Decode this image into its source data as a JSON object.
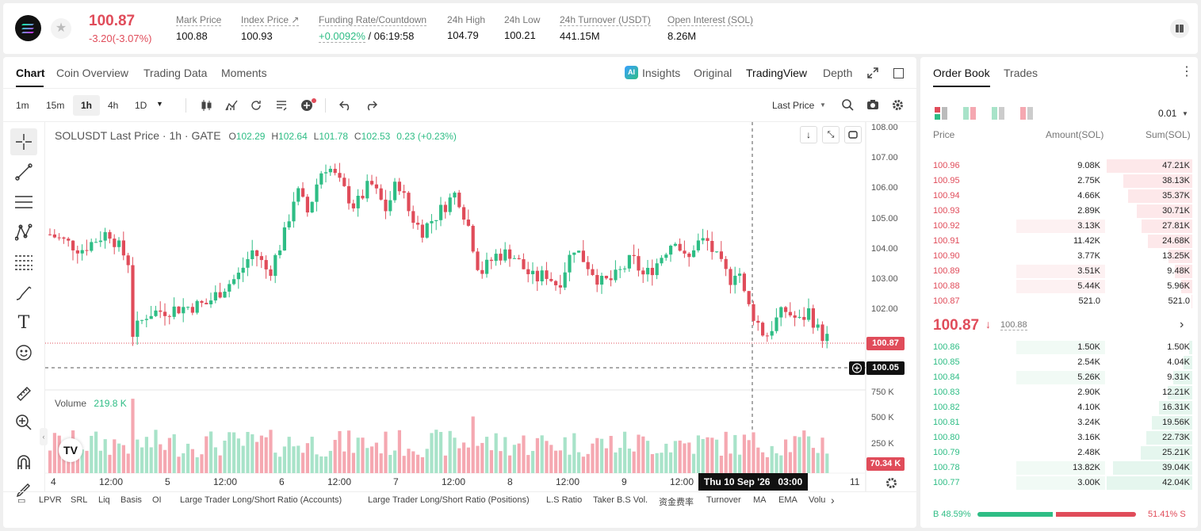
{
  "header": {
    "price": "100.87",
    "change": "-3.20(-3.07%)",
    "stats": [
      {
        "label": "Mark Price",
        "value": "100.88"
      },
      {
        "label": "Index Price ↗",
        "value": "100.93"
      },
      {
        "label": "Funding Rate/Countdown",
        "value": "+0.0092%",
        "value2": "/ 06:19:58"
      },
      {
        "label": "24h High",
        "value": "104.79"
      },
      {
        "label": "24h Low",
        "value": "100.21"
      },
      {
        "label": "24h Turnover (USDT)",
        "value": "441.15M"
      },
      {
        "label": "Open Interest (SOL)",
        "value": "8.26M"
      }
    ]
  },
  "chart_tabs": [
    "Chart",
    "Coin Overview",
    "Trading Data",
    "Moments"
  ],
  "view_tabs": {
    "insights": "Insights",
    "original": "Original",
    "tradingview": "TradingView",
    "depth": "Depth"
  },
  "intervals": [
    "1m",
    "15m",
    "1h",
    "4h",
    "1D"
  ],
  "price_type": "Last Price",
  "legend": {
    "symbol": "SOLUSDT Last Price · 1h · GATE",
    "o": "102.29",
    "h": "102.64",
    "l": "101.78",
    "c": "102.53",
    "change": "0.23 (+0.23%)"
  },
  "volume_legend": {
    "label": "Volume",
    "value": "219.8 K"
  },
  "price_axis": [
    "108.00",
    "107.00",
    "106.00",
    "105.00",
    "104.00",
    "103.00",
    "102.00"
  ],
  "current_price_tag": "100.87",
  "crosshair_price_tag": "100.05",
  "volume_axis": [
    "750 K",
    "500 K",
    "250 K"
  ],
  "volume_tag": "70.34 K",
  "time_axis": [
    "4",
    "12:00",
    "5",
    "12:00",
    "6",
    "12:00",
    "7",
    "12:00",
    "8",
    "12:00",
    "9",
    "12:00",
    "11"
  ],
  "crosshair_time": "Thu 10 Sep '26   03:00",
  "indicators": [
    "LPVR",
    "SRL",
    "Liq",
    "Basis",
    "OI",
    "Large Trader Long/Short Ratio (Accounts)",
    "Large Trader Long/Short Ratio (Positions)",
    "L.S Ratio",
    "Taker B.S Vol.",
    "资金费率",
    "Turnover",
    "MA",
    "EMA",
    "Volu"
  ],
  "orderbook": {
    "tabs": [
      "Order Book",
      "Trades"
    ],
    "precision": "0.01",
    "headers": [
      "Price",
      "Amount(SOL)",
      "Sum(SOL)"
    ],
    "asks": [
      {
        "price": "100.96",
        "amount": "9.08K",
        "sum": "47.21K",
        "depth": 1.0,
        "amt": 0.0
      },
      {
        "price": "100.95",
        "amount": "2.75K",
        "sum": "38.13K",
        "depth": 0.81,
        "amt": 0.0
      },
      {
        "price": "100.94",
        "amount": "4.66K",
        "sum": "35.37K",
        "depth": 0.75,
        "amt": 0.0
      },
      {
        "price": "100.93",
        "amount": "2.89K",
        "sum": "30.71K",
        "depth": 0.65,
        "amt": 0.0
      },
      {
        "price": "100.92",
        "amount": "3.13K",
        "sum": "27.81K",
        "depth": 0.59,
        "amt": 0.34
      },
      {
        "price": "100.91",
        "amount": "11.42K",
        "sum": "24.68K",
        "depth": 0.52,
        "amt": 0.0
      },
      {
        "price": "100.90",
        "amount": "3.77K",
        "sum": "13.25K",
        "depth": 0.28,
        "amt": 0.0
      },
      {
        "price": "100.89",
        "amount": "3.51K",
        "sum": "9.48K",
        "depth": 0.2,
        "amt": 0.34
      },
      {
        "price": "100.88",
        "amount": "5.44K",
        "sum": "5.96K",
        "depth": 0.13,
        "amt": 0.34
      },
      {
        "price": "100.87",
        "amount": "521.0",
        "sum": "521.0",
        "depth": 0.01,
        "amt": 0.0
      }
    ],
    "last_price": "100.87",
    "mark_price": "100.88",
    "bids": [
      {
        "price": "100.86",
        "amount": "1.50K",
        "sum": "1.50K",
        "depth": 0.04,
        "amt": 0.34
      },
      {
        "price": "100.85",
        "amount": "2.54K",
        "sum": "4.04K",
        "depth": 0.1,
        "amt": 0.0
      },
      {
        "price": "100.84",
        "amount": "5.26K",
        "sum": "9.31K",
        "depth": 0.22,
        "amt": 0.34
      },
      {
        "price": "100.83",
        "amount": "2.90K",
        "sum": "12.21K",
        "depth": 0.29,
        "amt": 0.0
      },
      {
        "price": "100.82",
        "amount": "4.10K",
        "sum": "16.31K",
        "depth": 0.39,
        "amt": 0.0
      },
      {
        "price": "100.81",
        "amount": "3.24K",
        "sum": "19.56K",
        "depth": 0.47,
        "amt": 0.0
      },
      {
        "price": "100.80",
        "amount": "3.16K",
        "sum": "22.73K",
        "depth": 0.54,
        "amt": 0.0
      },
      {
        "price": "100.79",
        "amount": "2.48K",
        "sum": "25.21K",
        "depth": 0.6,
        "amt": 0.0
      },
      {
        "price": "100.78",
        "amount": "13.82K",
        "sum": "39.04K",
        "depth": 0.93,
        "amt": 0.34
      },
      {
        "price": "100.77",
        "amount": "3.00K",
        "sum": "42.04K",
        "depth": 1.0,
        "amt": 0.34
      }
    ],
    "buy_ratio": "B 48.59%",
    "sell_ratio": "51.41% S",
    "buy_fraction": 0.4859
  },
  "colors": {
    "up": "#2ebd85",
    "down": "#e04c5a",
    "up_vol": "#a8e3c9",
    "down_vol": "#f5a8b1"
  }
}
